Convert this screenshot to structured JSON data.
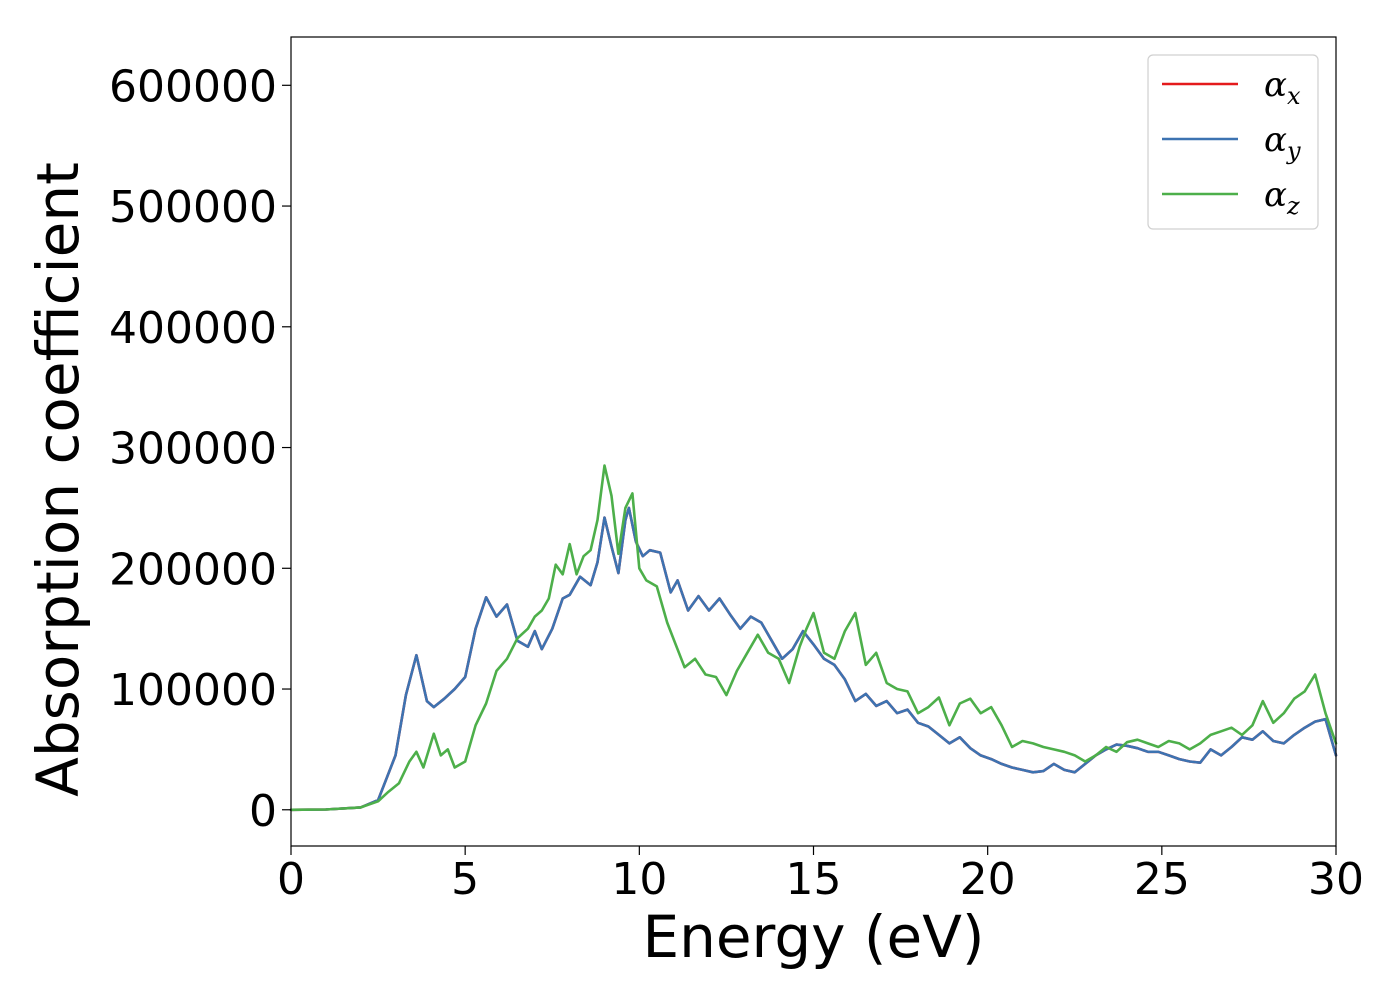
{
  "chart_data": {
    "type": "line",
    "title": "",
    "xlabel": "Energy (eV)",
    "ylabel": "Absorption coefficient",
    "xlim": [
      0,
      30
    ],
    "ylim": [
      -30000,
      640000
    ],
    "xticks": [
      0,
      5,
      10,
      15,
      20,
      25,
      30
    ],
    "xtick_labels": [
      "0",
      "5",
      "10",
      "15",
      "20",
      "25",
      "30"
    ],
    "yticks": [
      0,
      100000,
      200000,
      300000,
      400000,
      500000,
      600000
    ],
    "ytick_labels": [
      "0",
      "100000",
      "200000",
      "300000",
      "400000",
      "500000",
      "600000"
    ],
    "grid": false,
    "legend_position": "top-right",
    "series": [
      {
        "name": "α_x",
        "legend_symbol": "α",
        "legend_subscript": "x",
        "color": "#e41a1c",
        "x": [
          0,
          1,
          2,
          2.5,
          3,
          3.3,
          3.6,
          3.9,
          4.1,
          4.4,
          4.7,
          5,
          5.3,
          5.6,
          5.9,
          6.2,
          6.5,
          6.8,
          7.0,
          7.2,
          7.5,
          7.8,
          8.0,
          8.3,
          8.6,
          8.8,
          9.0,
          9.2,
          9.4,
          9.6,
          9.7,
          9.9,
          10.1,
          10.3,
          10.6,
          10.9,
          11.1,
          11.4,
          11.7,
          12.0,
          12.3,
          12.6,
          12.9,
          13.2,
          13.5,
          13.8,
          14.1,
          14.4,
          14.7,
          15.0,
          15.3,
          15.6,
          15.9,
          16.2,
          16.5,
          16.8,
          17.1,
          17.4,
          17.7,
          18.0,
          18.3,
          18.6,
          18.9,
          19.2,
          19.5,
          19.8,
          20.1,
          20.4,
          20.7,
          21.0,
          21.3,
          21.6,
          21.9,
          22.2,
          22.5,
          22.8,
          23.1,
          23.4,
          23.7,
          24.0,
          24.3,
          24.6,
          24.9,
          25.2,
          25.5,
          25.8,
          26.1,
          26.4,
          26.7,
          27.0,
          27.3,
          27.6,
          27.9,
          28.2,
          28.5,
          28.8,
          29.1,
          29.4,
          29.7,
          30.0
        ],
        "values": [
          0,
          200,
          2000,
          8000,
          45000,
          95000,
          128000,
          90000,
          85000,
          92000,
          100000,
          110000,
          150000,
          176000,
          160000,
          170000,
          140000,
          135000,
          148000,
          133000,
          150000,
          175000,
          178000,
          193000,
          186000,
          205000,
          242000,
          218000,
          196000,
          240000,
          250000,
          222000,
          210000,
          215000,
          213000,
          180000,
          190000,
          165000,
          177000,
          165000,
          175000,
          162000,
          150000,
          160000,
          155000,
          140000,
          125000,
          133000,
          148000,
          137000,
          125000,
          120000,
          108000,
          90000,
          96000,
          86000,
          90000,
          80000,
          83000,
          72000,
          69000,
          62000,
          55000,
          60000,
          51000,
          45000,
          42000,
          38000,
          35000,
          33000,
          31000,
          32000,
          38000,
          33000,
          31000,
          38000,
          45000,
          50000,
          54000,
          53000,
          51000,
          48000,
          48000,
          45000,
          42000,
          40000,
          39000,
          50000,
          45000,
          52000,
          60000,
          58000,
          65000,
          57000,
          55000,
          62000,
          68000,
          73000,
          75000,
          45000
        ]
      },
      {
        "name": "α_y",
        "legend_symbol": "α",
        "legend_subscript": "y",
        "color": "#3d73b1",
        "x": [
          0,
          1,
          2,
          2.5,
          3,
          3.3,
          3.6,
          3.9,
          4.1,
          4.4,
          4.7,
          5,
          5.3,
          5.6,
          5.9,
          6.2,
          6.5,
          6.8,
          7.0,
          7.2,
          7.5,
          7.8,
          8.0,
          8.3,
          8.6,
          8.8,
          9.0,
          9.2,
          9.4,
          9.6,
          9.7,
          9.9,
          10.1,
          10.3,
          10.6,
          10.9,
          11.1,
          11.4,
          11.7,
          12.0,
          12.3,
          12.6,
          12.9,
          13.2,
          13.5,
          13.8,
          14.1,
          14.4,
          14.7,
          15.0,
          15.3,
          15.6,
          15.9,
          16.2,
          16.5,
          16.8,
          17.1,
          17.4,
          17.7,
          18.0,
          18.3,
          18.6,
          18.9,
          19.2,
          19.5,
          19.8,
          20.1,
          20.4,
          20.7,
          21.0,
          21.3,
          21.6,
          21.9,
          22.2,
          22.5,
          22.8,
          23.1,
          23.4,
          23.7,
          24.0,
          24.3,
          24.6,
          24.9,
          25.2,
          25.5,
          25.8,
          26.1,
          26.4,
          26.7,
          27.0,
          27.3,
          27.6,
          27.9,
          28.2,
          28.5,
          28.8,
          29.1,
          29.4,
          29.7,
          30.0
        ],
        "values": [
          0,
          200,
          2000,
          8000,
          45000,
          95000,
          128000,
          90000,
          85000,
          92000,
          100000,
          110000,
          150000,
          176000,
          160000,
          170000,
          140000,
          135000,
          148000,
          133000,
          150000,
          175000,
          178000,
          193000,
          186000,
          205000,
          242000,
          218000,
          196000,
          240000,
          250000,
          222000,
          210000,
          215000,
          213000,
          180000,
          190000,
          165000,
          177000,
          165000,
          175000,
          162000,
          150000,
          160000,
          155000,
          140000,
          125000,
          133000,
          148000,
          137000,
          125000,
          120000,
          108000,
          90000,
          96000,
          86000,
          90000,
          80000,
          83000,
          72000,
          69000,
          62000,
          55000,
          60000,
          51000,
          45000,
          42000,
          38000,
          35000,
          33000,
          31000,
          32000,
          38000,
          33000,
          31000,
          38000,
          45000,
          50000,
          54000,
          53000,
          51000,
          48000,
          48000,
          45000,
          42000,
          40000,
          39000,
          50000,
          45000,
          52000,
          60000,
          58000,
          65000,
          57000,
          55000,
          62000,
          68000,
          73000,
          75000,
          45000
        ]
      },
      {
        "name": "α_z",
        "legend_symbol": "α",
        "legend_subscript": "z",
        "color": "#4daf4a",
        "x": [
          0,
          1,
          2,
          2.5,
          2.8,
          3.1,
          3.4,
          3.6,
          3.8,
          4.1,
          4.3,
          4.5,
          4.7,
          5.0,
          5.3,
          5.6,
          5.9,
          6.2,
          6.5,
          6.8,
          7.0,
          7.2,
          7.4,
          7.6,
          7.8,
          8.0,
          8.2,
          8.4,
          8.6,
          8.8,
          9.0,
          9.2,
          9.4,
          9.6,
          9.8,
          10.0,
          10.2,
          10.5,
          10.8,
          11.0,
          11.3,
          11.6,
          11.9,
          12.2,
          12.5,
          12.8,
          13.1,
          13.4,
          13.7,
          14.0,
          14.3,
          14.6,
          14.8,
          15.0,
          15.3,
          15.6,
          15.9,
          16.2,
          16.5,
          16.8,
          17.1,
          17.4,
          17.7,
          18.0,
          18.3,
          18.6,
          18.9,
          19.2,
          19.5,
          19.8,
          20.1,
          20.4,
          20.7,
          21.0,
          21.3,
          21.6,
          21.9,
          22.2,
          22.5,
          22.8,
          23.1,
          23.4,
          23.7,
          24.0,
          24.3,
          24.6,
          24.9,
          25.2,
          25.5,
          25.8,
          26.1,
          26.4,
          26.7,
          27.0,
          27.3,
          27.6,
          27.9,
          28.2,
          28.5,
          28.8,
          29.1,
          29.4,
          29.7,
          30.0
        ],
        "values": [
          0,
          200,
          2000,
          7000,
          15000,
          22000,
          40000,
          48000,
          35000,
          63000,
          45000,
          50000,
          35000,
          40000,
          70000,
          88000,
          115000,
          125000,
          142000,
          150000,
          160000,
          165000,
          175000,
          203000,
          195000,
          220000,
          195000,
          210000,
          215000,
          240000,
          285000,
          260000,
          212000,
          250000,
          262000,
          200000,
          190000,
          185000,
          155000,
          140000,
          118000,
          125000,
          112000,
          110000,
          95000,
          115000,
          130000,
          145000,
          130000,
          125000,
          105000,
          135000,
          150000,
          163000,
          130000,
          125000,
          148000,
          163000,
          120000,
          130000,
          105000,
          100000,
          98000,
          80000,
          85000,
          93000,
          70000,
          88000,
          92000,
          80000,
          85000,
          70000,
          52000,
          57000,
          55000,
          52000,
          50000,
          48000,
          45000,
          40000,
          45000,
          52000,
          48000,
          56000,
          58000,
          55000,
          52000,
          57000,
          55000,
          50000,
          55000,
          62000,
          65000,
          68000,
          62000,
          70000,
          90000,
          72000,
          80000,
          92000,
          98000,
          112000,
          80000,
          55000
        ]
      }
    ]
  }
}
